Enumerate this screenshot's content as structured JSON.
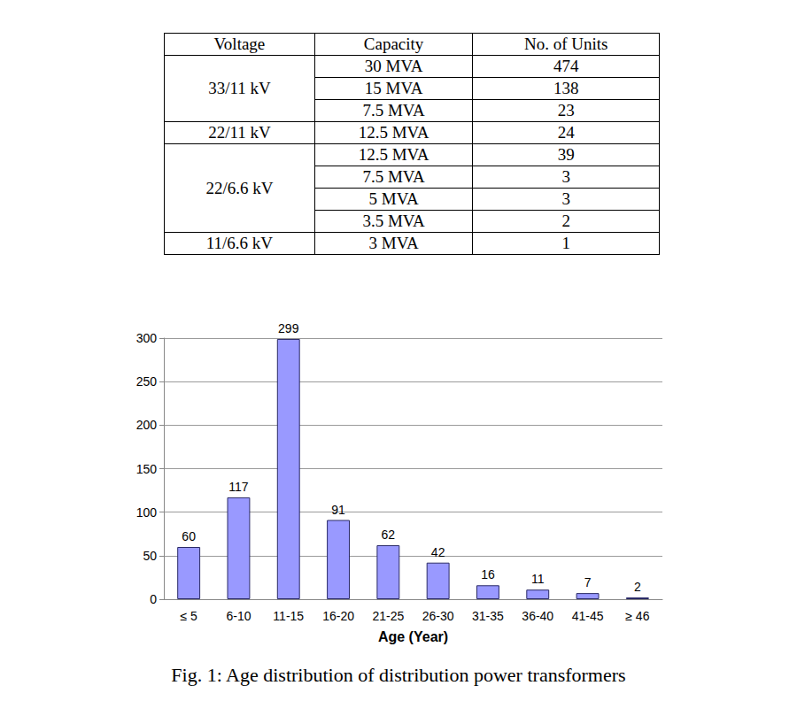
{
  "table": {
    "header": [
      "Voltage",
      "Capacity",
      "No. of Units"
    ],
    "groups": [
      {
        "voltage": "33/11 kV",
        "rows": [
          [
            "30 MVA",
            474
          ],
          [
            "15 MVA",
            138
          ],
          [
            "7.5 MVA",
            23
          ]
        ]
      },
      {
        "voltage": "22/11 kV",
        "rows": [
          [
            "12.5 MVA",
            24
          ]
        ]
      },
      {
        "voltage": "22/6.6 kV",
        "rows": [
          [
            "12.5 MVA",
            39
          ],
          [
            "7.5 MVA",
            3
          ],
          [
            "5 MVA",
            3
          ],
          [
            "3.5 MVA",
            2
          ]
        ]
      },
      {
        "voltage": "11/6.6 kV",
        "rows": [
          [
            "3 MVA",
            1
          ]
        ]
      }
    ]
  },
  "chart_data": {
    "type": "bar",
    "x_label": "Age (Year)",
    "categories": [
      "≤ 5",
      "6-10",
      "11-15",
      "16-20",
      "21-25",
      "26-30",
      "31-35",
      "36-40",
      "41-45",
      "≥ 46"
    ],
    "values": [
      60,
      117,
      299,
      91,
      62,
      42,
      16,
      11,
      7,
      2
    ],
    "color": "#9999ff",
    "ylim": [
      0,
      300
    ],
    "yticks": [
      0,
      50,
      100,
      150,
      200,
      250,
      300
    ],
    "grid": true,
    "data_labels": true
  },
  "caption": "Fig. 1: Age distribution of distribution power transformers"
}
